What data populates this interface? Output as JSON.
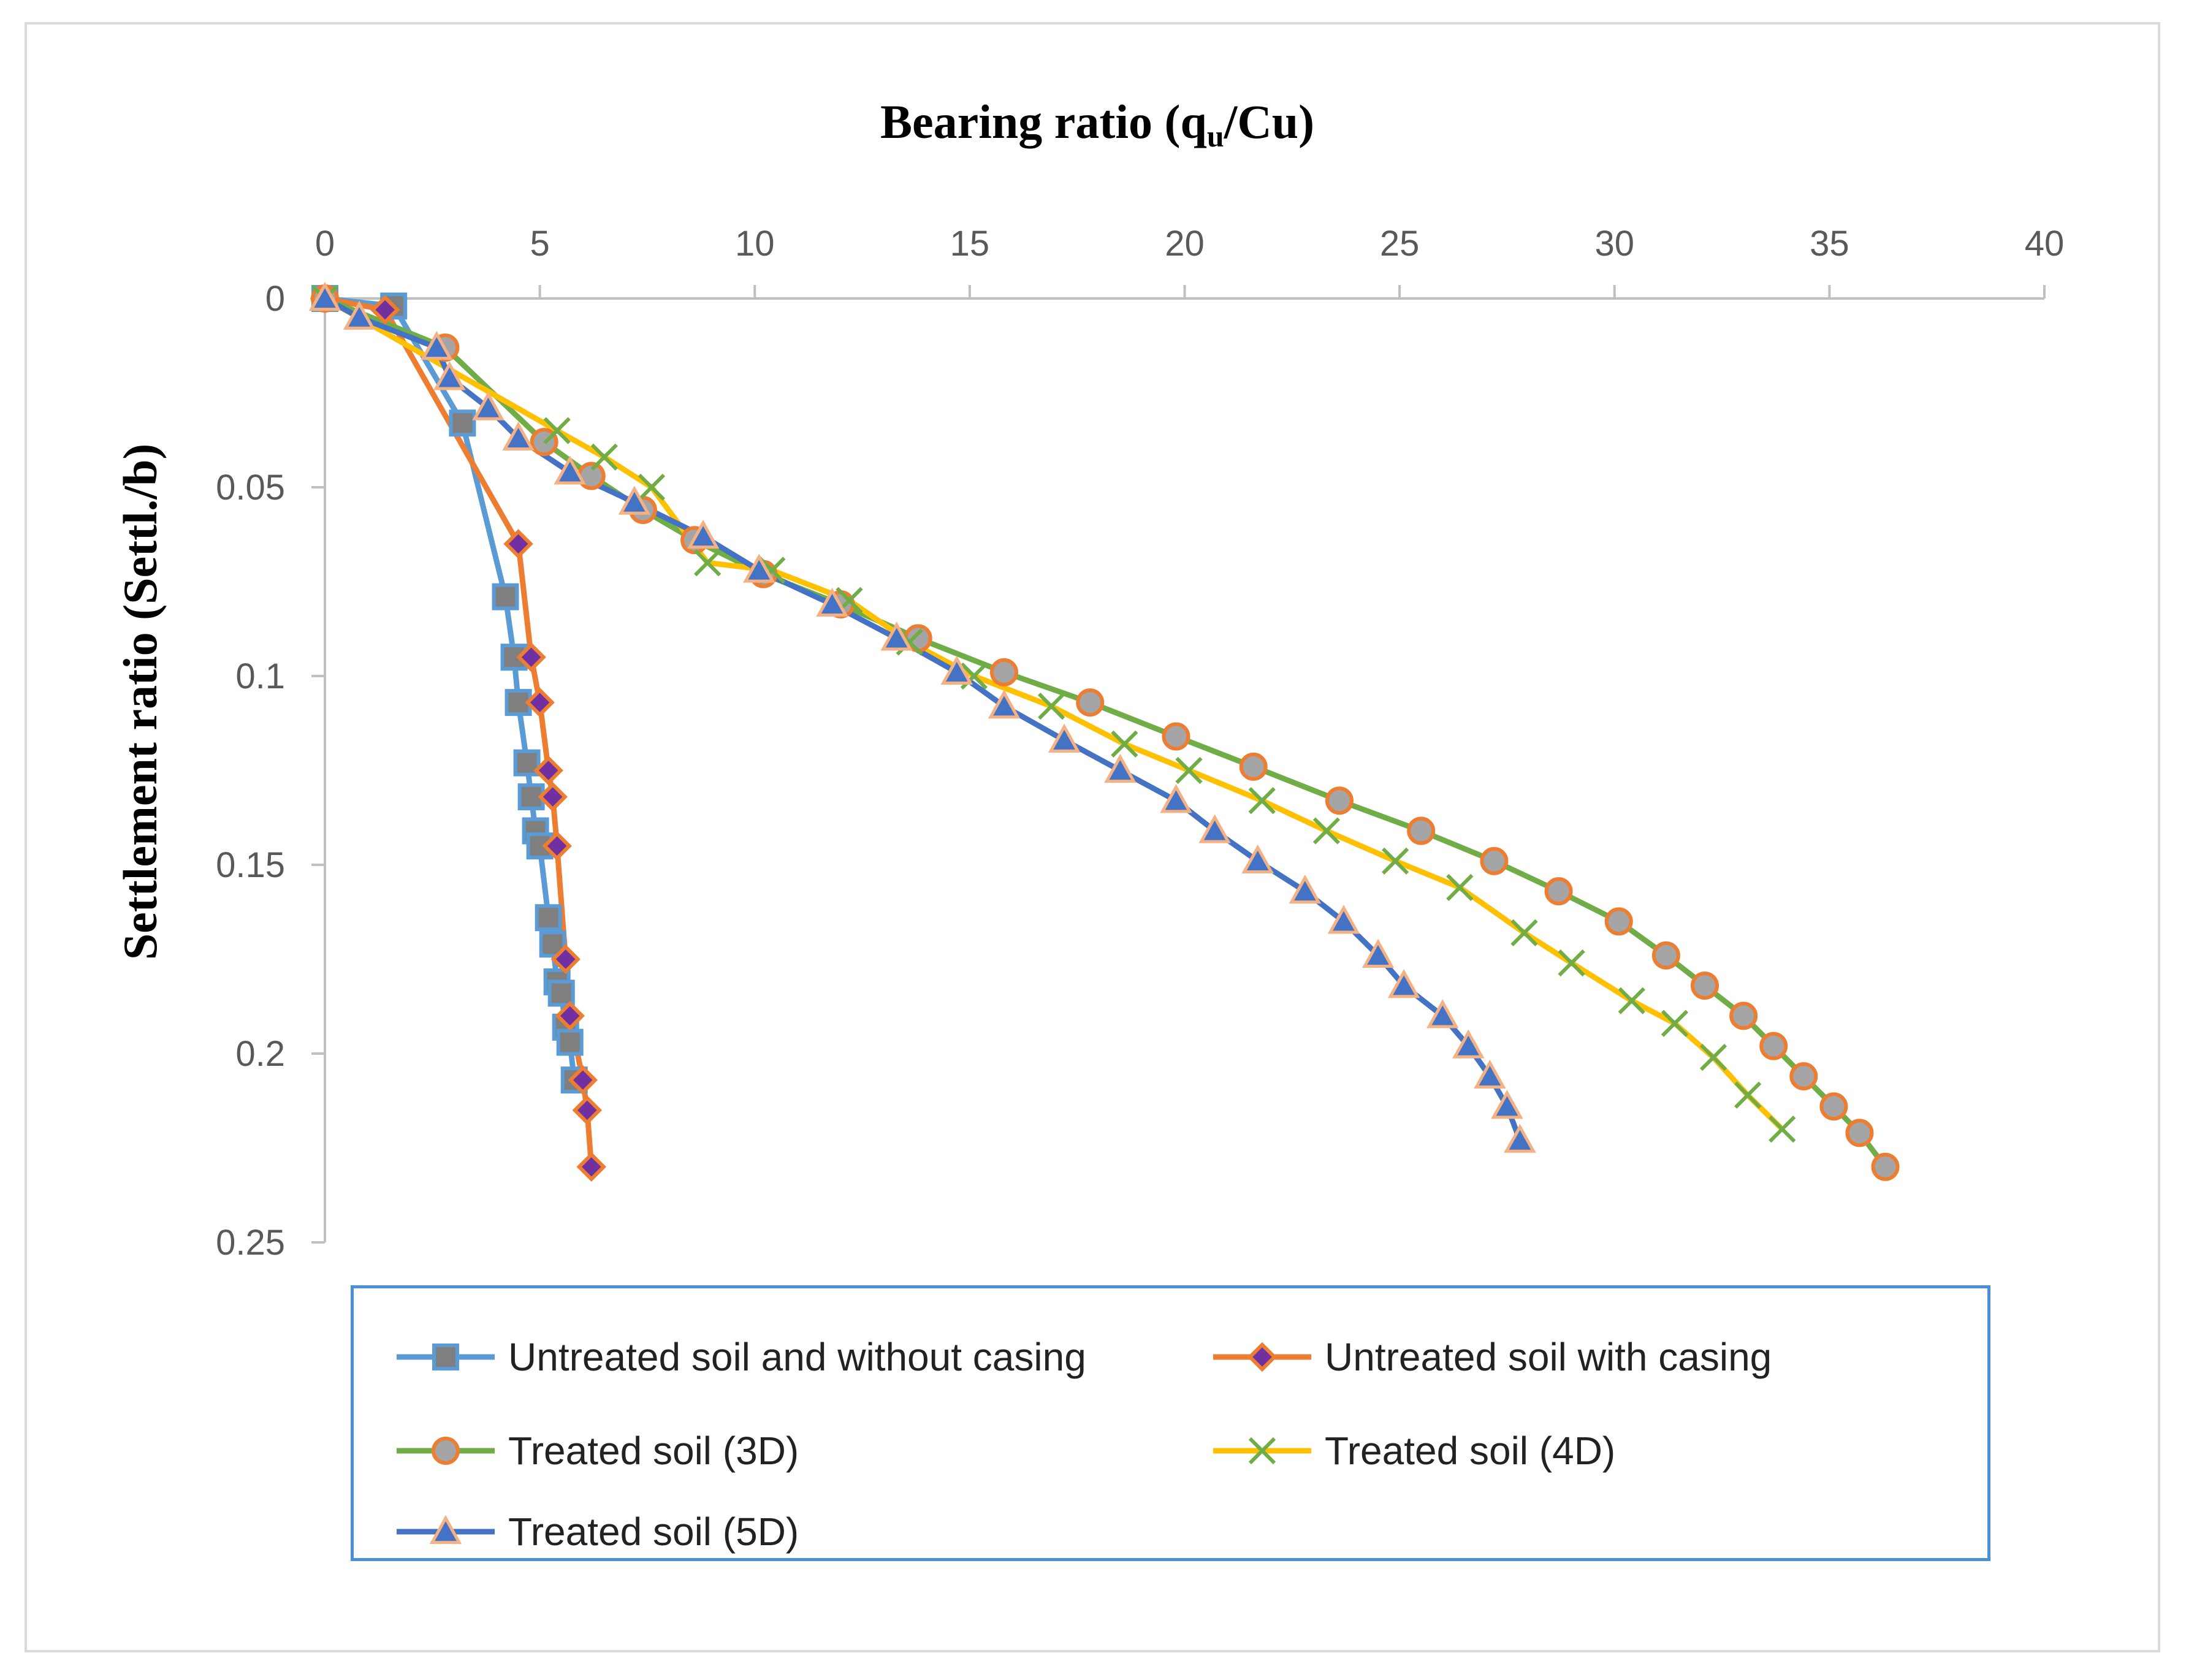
{
  "chart_data": {
    "type": "line",
    "title": "Bearing ratio (q",
    "title_sub": "u",
    "title_tail": "/Cu)",
    "xlabel": "",
    "ylabel": "Settlement ratio (Settl./b)",
    "xlim": [
      0,
      40
    ],
    "ylim": [
      0,
      0.25
    ],
    "x_ticks": [
      0,
      5,
      10,
      15,
      20,
      25,
      30,
      35,
      40
    ],
    "x_tick_labels": [
      "0",
      "5",
      "10",
      "15",
      "20",
      "25",
      "30",
      "35",
      "40"
    ],
    "y_ticks": [
      0,
      0.05,
      0.1,
      0.15,
      0.2,
      0.25
    ],
    "y_tick_labels": [
      "0",
      "0.05",
      "0.1",
      "0.15",
      "0.2",
      "0.25"
    ],
    "x_axis_position": "top",
    "y_inverted": true,
    "legend_position": "bottom",
    "series": [
      {
        "name": "Untreated soil and without casing",
        "line_color": "#5b9bd5",
        "marker": "square",
        "marker_fill": "#7f7f7f",
        "marker_edge": "#5b9bd5",
        "x": [
          0,
          1.6,
          3.2,
          4.2,
          4.4,
          4.5,
          4.7,
          4.8,
          4.9,
          5.0,
          5.2,
          5.3,
          5.4,
          5.5,
          5.6,
          5.7,
          5.8
        ],
        "y": [
          0,
          0.002,
          0.033,
          0.079,
          0.095,
          0.107,
          0.123,
          0.132,
          0.141,
          0.145,
          0.164,
          0.171,
          0.181,
          0.184,
          0.193,
          0.197,
          0.207
        ]
      },
      {
        "name": "Untreated soil with casing",
        "line_color": "#ed7d31",
        "marker": "diamond",
        "marker_fill": "#7030a0",
        "marker_edge": "#ed7d31",
        "x": [
          0,
          1.4,
          4.5,
          4.8,
          5.0,
          5.2,
          5.3,
          5.4,
          5.6,
          5.7,
          6.0,
          6.1,
          6.2
        ],
        "y": [
          0,
          0.003,
          0.065,
          0.095,
          0.107,
          0.125,
          0.132,
          0.145,
          0.175,
          0.19,
          0.207,
          0.215,
          0.23
        ]
      },
      {
        "name": "Treated soil (3D)",
        "line_color": "#70ad47",
        "marker": "circle",
        "marker_fill": "#a5a5a5",
        "marker_edge": "#ed7d31",
        "x": [
          0,
          2.8,
          5.1,
          6.2,
          7.4,
          8.6,
          10.2,
          12.0,
          13.8,
          15.8,
          17.8,
          19.8,
          21.6,
          23.6,
          25.5,
          27.2,
          28.7,
          30.1,
          31.2,
          32.1,
          33.0,
          33.7,
          34.4,
          35.1,
          35.7,
          36.3
        ],
        "y": [
          0,
          0.013,
          0.038,
          0.047,
          0.056,
          0.064,
          0.073,
          0.081,
          0.09,
          0.099,
          0.107,
          0.116,
          0.124,
          0.133,
          0.141,
          0.149,
          0.157,
          0.165,
          0.174,
          0.182,
          0.19,
          0.198,
          0.206,
          0.214,
          0.221,
          0.23
        ]
      },
      {
        "name": "Treated soil (4D)",
        "line_color": "#ffc000",
        "marker": "x",
        "marker_fill": "none",
        "marker_edge": "#70ad47",
        "x": [
          0,
          5.4,
          6.5,
          7.6,
          8.9,
          10.4,
          12.2,
          13.6,
          15.1,
          16.9,
          18.6,
          20.1,
          21.8,
          23.3,
          24.9,
          26.4,
          27.9,
          29.0,
          30.4,
          31.4,
          32.3,
          33.1,
          33.9
        ],
        "y": [
          0,
          0.035,
          0.042,
          0.05,
          0.07,
          0.072,
          0.08,
          0.091,
          0.1,
          0.108,
          0.118,
          0.125,
          0.133,
          0.141,
          0.149,
          0.156,
          0.168,
          0.176,
          0.186,
          0.192,
          0.201,
          0.211,
          0.22
        ]
      },
      {
        "name": "Treated soil (5D)",
        "line_color": "#4472c4",
        "marker": "triangle",
        "marker_fill": "#4472c4",
        "marker_edge": "#f4b183",
        "x": [
          0,
          0.8,
          2.6,
          2.9,
          3.8,
          4.5,
          5.7,
          7.2,
          8.8,
          10.1,
          11.8,
          13.3,
          14.7,
          15.8,
          17.2,
          18.5,
          19.8,
          20.7,
          21.7,
          22.8,
          23.7,
          24.5,
          25.1,
          26.0,
          26.6,
          27.1,
          27.5,
          27.8
        ],
        "y": [
          0,
          0.005,
          0.013,
          0.021,
          0.029,
          0.037,
          0.046,
          0.054,
          0.063,
          0.072,
          0.081,
          0.09,
          0.099,
          0.108,
          0.117,
          0.125,
          0.133,
          0.141,
          0.149,
          0.157,
          0.165,
          0.174,
          0.182,
          0.19,
          0.198,
          0.206,
          0.214,
          0.223
        ]
      }
    ]
  }
}
